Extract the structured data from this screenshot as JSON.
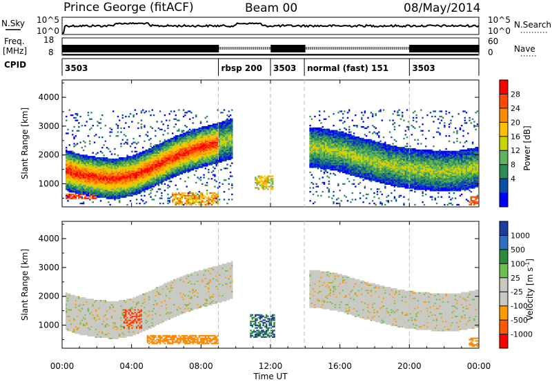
{
  "header": {
    "title": "Prince George (fitACF)",
    "beam": "Beam 00",
    "date": "08/May/2014"
  },
  "noise_panel": {
    "left_label": "N.Sky",
    "left_ticks": [
      "10^5",
      "10^0"
    ],
    "right_label": "N.Search",
    "right_ticks": [
      "10^5",
      "10^0"
    ]
  },
  "freq_panel": {
    "left_label_1": "Freq.",
    "left_label_2": "[MHz]",
    "left_ticks": [
      "18",
      "8"
    ],
    "right_label": "Nave",
    "right_ticks": [
      "60",
      "0"
    ]
  },
  "cpid_panel": {
    "label": "CPID",
    "segments": [
      {
        "start": 0,
        "label": "3503"
      },
      {
        "start": 9.0,
        "label": "rbsp 200"
      },
      {
        "start": 12.0,
        "label": "3503"
      },
      {
        "start": 13.95,
        "label": "normal (fast) 151"
      },
      {
        "start": 20.0,
        "label": "3503"
      }
    ]
  },
  "power_panel": {
    "ylabel": "Slant Range [km]",
    "yticks": [
      "4000",
      "3000",
      "2000",
      "1000"
    ],
    "cbar_label": "Power [dB]",
    "cbar_ticks": [
      "28",
      "24",
      "20",
      "16",
      "12",
      "8",
      "4"
    ],
    "cbar_colors": [
      "#ff0000",
      "#ff4a00",
      "#ff8c00",
      "#ffc000",
      "#c8d400",
      "#5fb35c",
      "#2e8b57",
      "#0a4ea6",
      "#0000ff"
    ]
  },
  "velocity_panel": {
    "ylabel": "Slant Range [km]",
    "yticks": [
      "4000",
      "3000",
      "2000",
      "1000"
    ],
    "cbar_label": "Velocity [m s",
    "cbar_label_sup": "-1",
    "cbar_label_end": "]",
    "cbar_ticks": [
      "1000",
      "500",
      "100",
      "25",
      "-25",
      "-100",
      "-500",
      "-1000"
    ],
    "cbar_colors": [
      "#1a3d9e",
      "#2f6fbf",
      "#2e8b3a",
      "#6cc04a",
      "#c9c9c4",
      "#c9c9c4",
      "#ff9a00",
      "#ff5a00",
      "#ff0000"
    ]
  },
  "xaxis": {
    "ticks": [
      "00:00",
      "04:00",
      "08:00",
      "12:00",
      "16:00",
      "20:00",
      "00:00"
    ],
    "label": "Time UT"
  },
  "chart_data": {
    "type": "heatmap",
    "x_unit": "hours UT",
    "xlim": [
      0,
      24
    ],
    "ylim": [
      200,
      4600
    ],
    "mode_changes": [
      9.0,
      12.0,
      13.95,
      20.0
    ],
    "power_traces": [
      {
        "x": [
          0.2,
          1,
          2,
          3,
          4,
          5,
          6,
          7,
          8,
          9,
          9.8
        ],
        "y": [
          1500,
          1350,
          1250,
          1200,
          1300,
          1550,
          1850,
          2100,
          2300,
          2450,
          2600
        ]
      },
      {
        "x": [
          14.2,
          15,
          16,
          17,
          18,
          19,
          20,
          21,
          22,
          23,
          23.9
        ],
        "y": [
          2300,
          2250,
          2150,
          1950,
          1800,
          1650,
          1550,
          1500,
          1450,
          1500,
          1600
        ]
      }
    ]
  }
}
